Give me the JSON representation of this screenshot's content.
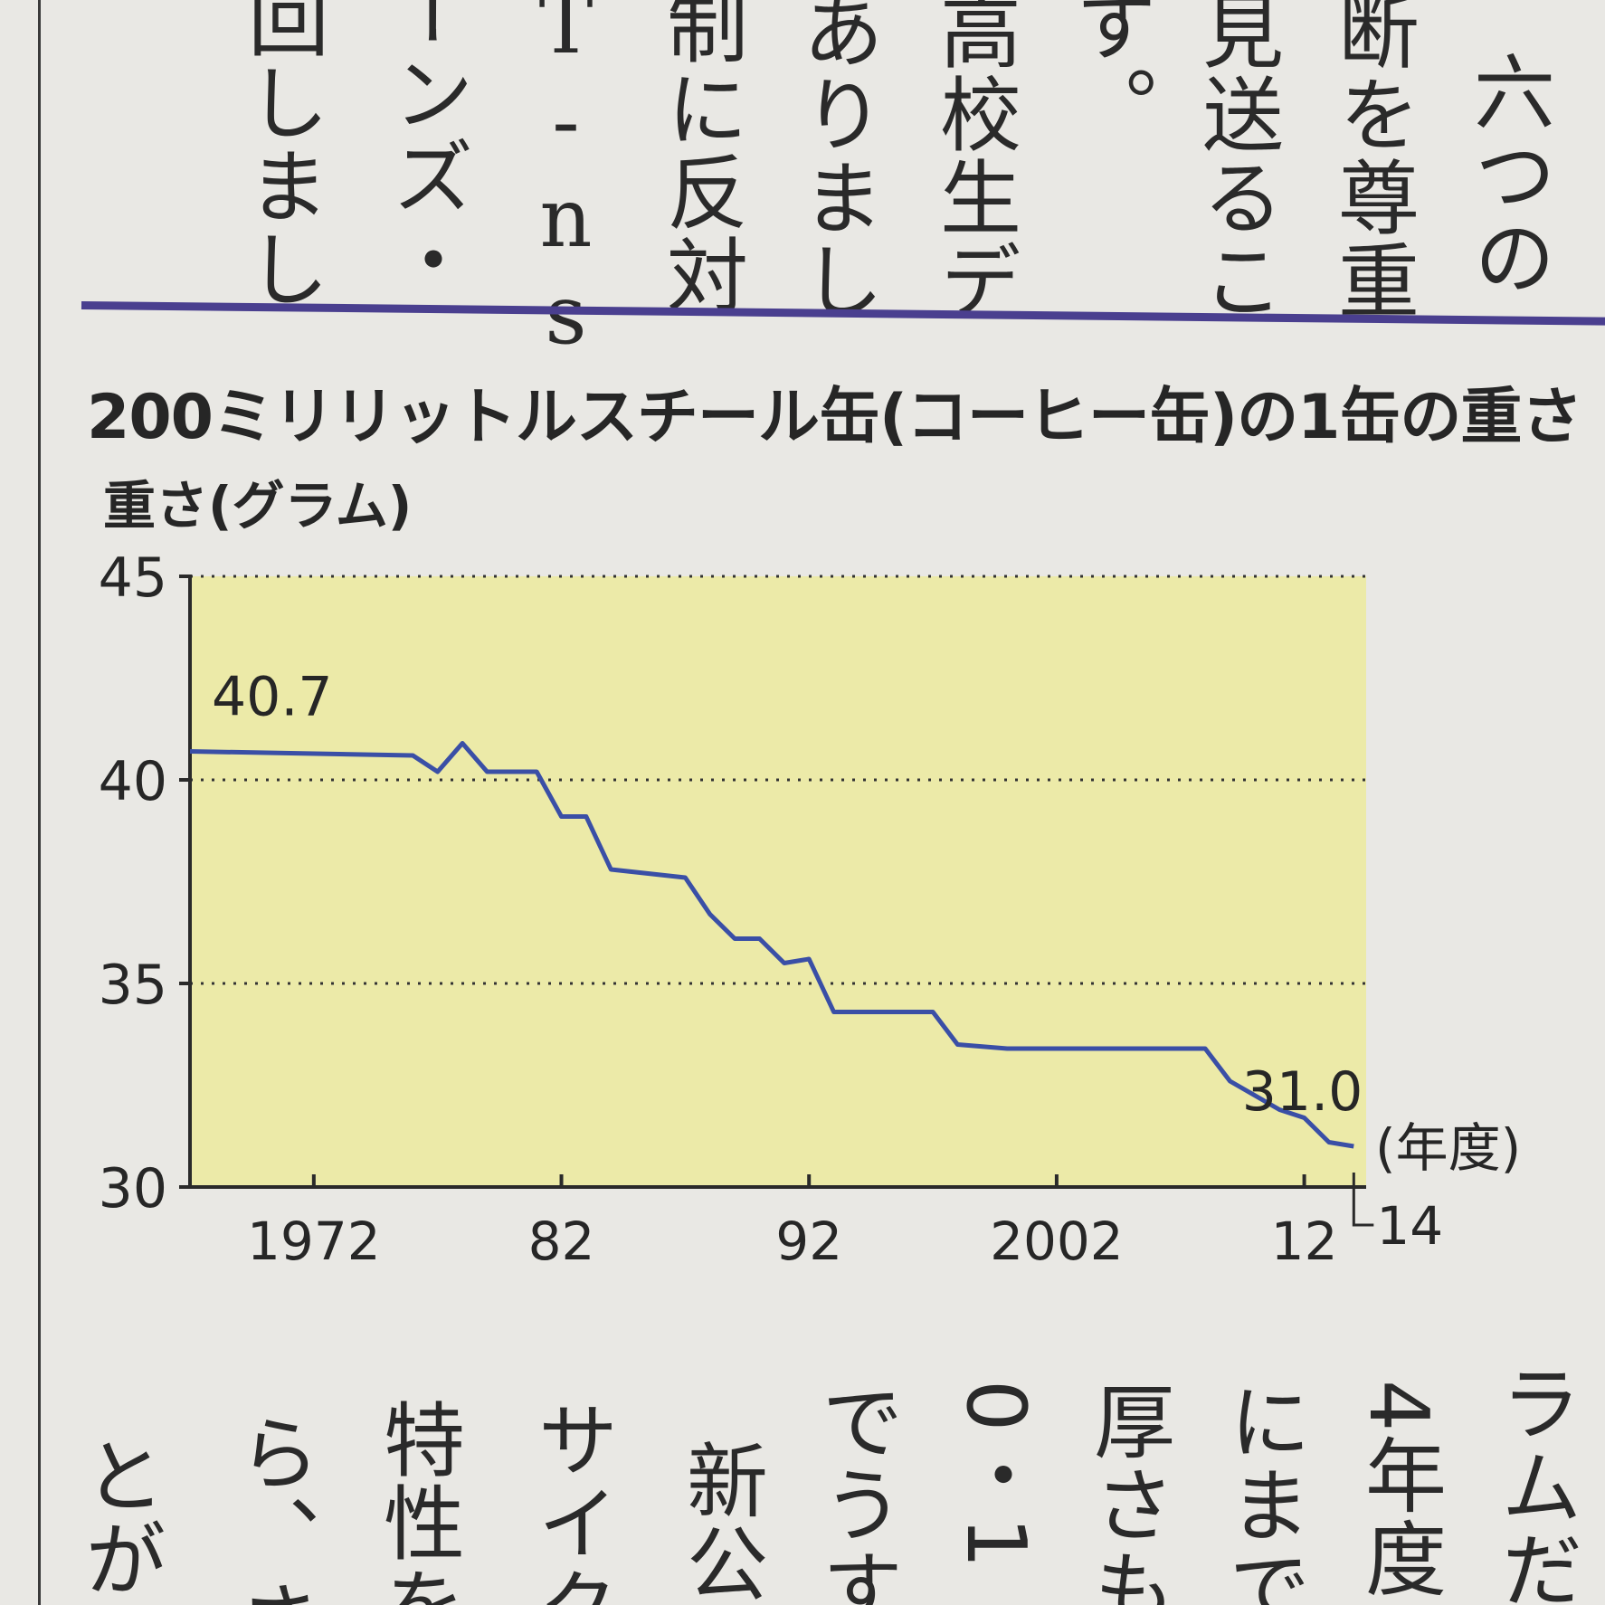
{
  "article_top": {
    "columns": [
      "六つの",
      "断を尊重",
      "見送るこ",
      "す。",
      "高校生デ",
      "ありまし",
      "制に反対",
      "T-ns",
      "ーンズ・",
      "回しまし"
    ]
  },
  "article_bottom": {
    "columns": [
      "ラムだ",
      "4年度",
      "にまで",
      "厚さも",
      "0・1",
      "でうす",
      "新公",
      "サイク",
      "特性を",
      "ら、さ",
      "とが日"
    ]
  },
  "colors": {
    "plot_bg": "#eceaa8",
    "line": "#3a4fa6",
    "divider": "#4a3f8f"
  },
  "chart_data": {
    "type": "line",
    "title": "200ミリリットルスチール缶(コーヒー缶)の1缶の重さ",
    "ylabel": "重さ(グラム)",
    "xlabel": "(年度)",
    "ylim": [
      30,
      45
    ],
    "xlim": [
      1967,
      2014.5
    ],
    "yticks": [
      30,
      35,
      40,
      45
    ],
    "y_tick_labels": [
      "30",
      "35",
      "40",
      "45"
    ],
    "xticks": [
      1972,
      1982,
      1992,
      2002,
      2012,
      2014
    ],
    "x_tick_labels": [
      "1972",
      "82",
      "92",
      "2002",
      "12",
      "14"
    ],
    "grid": "dotted horizontal at 35, 40, 45",
    "annotations": [
      {
        "text": "40.7",
        "x": 1967,
        "y": 40.7
      },
      {
        "text": "31.0",
        "x": 2014,
        "y": 31.0
      }
    ],
    "series": [
      {
        "x": [
          1967,
          1976,
          1977,
          1978,
          1979,
          1981,
          1982,
          1983,
          1984,
          1987,
          1988,
          1989,
          1990,
          1991,
          1992,
          1993,
          1997,
          1998,
          2000,
          2008,
          2009,
          2011,
          2012,
          2013,
          2014
        ],
        "y": [
          40.7,
          40.6,
          40.2,
          40.9,
          40.2,
          40.2,
          39.1,
          39.1,
          37.8,
          37.6,
          36.7,
          36.1,
          36.1,
          35.5,
          35.6,
          34.3,
          34.3,
          33.5,
          33.4,
          33.4,
          32.6,
          31.9,
          31.7,
          31.1,
          31.0
        ]
      }
    ]
  }
}
